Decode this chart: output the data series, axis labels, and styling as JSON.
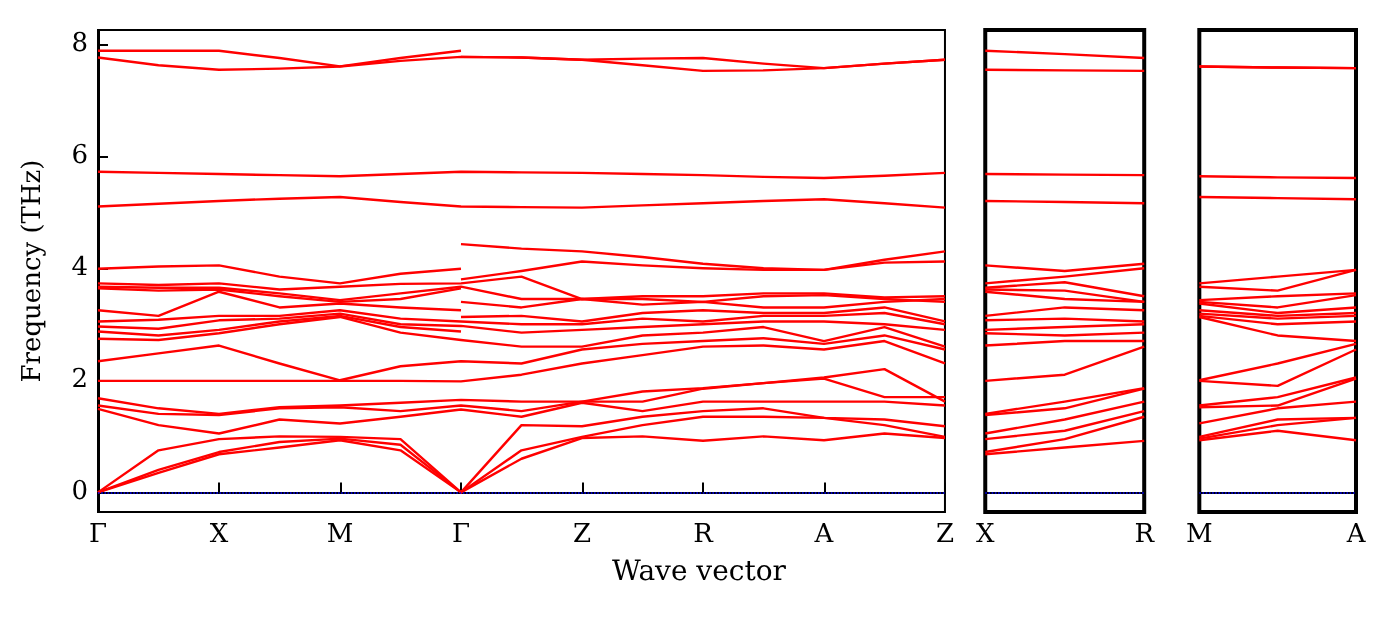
{
  "chart_data": [
    {
      "type": "line",
      "ylabel": "Frequency (THz)",
      "xlabel": "Wave vector",
      "ylim": [
        -0.35,
        8.25
      ],
      "yticks": [
        0,
        2,
        4,
        6,
        8
      ],
      "categories": [
        "Γ",
        null,
        "X",
        null,
        "M",
        null,
        "Γ",
        null,
        "Z",
        null,
        "R",
        null,
        "A",
        null,
        "Z"
      ],
      "grid": false,
      "ref_lines": [
        {
          "axis": "y",
          "value": 0,
          "color": "#0000ff",
          "line_style": "dotted"
        }
      ],
      "series": [
        {
          "color": "#ff0000",
          "values": [
            0,
            0.35,
            0.68,
            0.8,
            0.93,
            0.75,
            0,
            0.6,
            0.97,
            1.0,
            0.92,
            1.0,
            0.93,
            1.05,
            0.97
          ]
        },
        {
          "color": "#ff0000",
          "values": [
            0,
            0.4,
            0.72,
            0.9,
            0.96,
            0.85,
            0,
            0.75,
            0.99,
            1.2,
            1.35,
            1.35,
            1.33,
            1.2,
            0.99
          ]
        },
        {
          "color": "#ff0000",
          "values": [
            0,
            0.75,
            0.95,
            1.0,
            0.99,
            0.95,
            0,
            1.2,
            1.18,
            1.35,
            1.45,
            1.5,
            1.33,
            1.3,
            1.18
          ]
        },
        {
          "color": "#ff0000",
          "values": [
            1.49,
            1.2,
            1.05,
            1.3,
            1.23,
            1.35,
            1.48,
            1.35,
            1.6,
            1.45,
            1.62,
            1.62,
            1.62,
            1.62,
            1.55
          ]
        },
        {
          "color": "#ff0000",
          "values": [
            1.55,
            1.4,
            1.38,
            1.5,
            1.52,
            1.45,
            1.55,
            1.45,
            1.62,
            1.62,
            1.85,
            1.95,
            2.03,
            1.7,
            1.7
          ]
        },
        {
          "color": "#ff0000",
          "values": [
            1.68,
            1.5,
            1.4,
            1.52,
            1.55,
            1.6,
            1.65,
            1.62,
            1.62,
            1.8,
            1.86,
            1.95,
            2.05,
            2.2,
            1.62
          ]
        },
        {
          "color": "#ff0000",
          "values": [
            1.99,
            1.99,
            1.99,
            1.99,
            1.99,
            1.99,
            1.98,
            2.1,
            2.3,
            2.45,
            2.6,
            2.62,
            2.55,
            2.7,
            2.3
          ]
        },
        {
          "color": "#ff0000",
          "values": [
            2.34,
            2.48,
            2.62,
            2.3,
            2.0,
            2.25,
            2.34,
            2.3,
            2.55,
            2.65,
            2.7,
            2.75,
            2.65,
            2.8,
            2.55
          ]
        },
        {
          "color": "#ff0000",
          "values": [
            2.74,
            2.72,
            2.84,
            3.0,
            3.13,
            2.85,
            2.72,
            2.6,
            2.6,
            2.8,
            2.85,
            2.95,
            2.7,
            2.95,
            2.6
          ]
        },
        {
          "color": "#ff0000",
          "values": [
            2.87,
            2.8,
            2.9,
            3.05,
            3.15,
            2.95,
            2.87,
            null,
            null,
            null,
            null,
            null,
            null,
            null,
            null
          ]
        },
        {
          "color": "#ff0000",
          "values": [
            2.96,
            2.92,
            3.07,
            3.1,
            3.19,
            3.0,
            2.97,
            2.85,
            2.9,
            2.95,
            3.0,
            3.05,
            3.05,
            3.0,
            2.9
          ]
        },
        {
          "color": "#ff0000",
          "values": [
            3.05,
            3.08,
            3.15,
            3.15,
            3.25,
            3.1,
            3.05,
            3.0,
            3.0,
            3.1,
            3.05,
            3.15,
            3.15,
            3.2,
            3.0
          ]
        },
        {
          "color": "#ff0000",
          "values": [
            null,
            null,
            null,
            null,
            null,
            null,
            3.13,
            3.15,
            3.05,
            3.2,
            3.25,
            3.2,
            3.2,
            3.3,
            3.05
          ]
        },
        {
          "color": "#ff0000",
          "values": [
            3.25,
            3.15,
            3.58,
            3.3,
            3.37,
            3.3,
            3.25,
            null,
            null,
            null,
            null,
            null,
            null,
            null,
            null
          ]
        },
        {
          "color": "#ff0000",
          "values": [
            null,
            null,
            null,
            null,
            null,
            null,
            3.4,
            3.3,
            3.45,
            3.35,
            3.4,
            3.3,
            3.3,
            3.4,
            3.45
          ]
        },
        {
          "color": "#ff0000",
          "values": [
            3.64,
            3.6,
            3.62,
            3.5,
            3.4,
            3.45,
            3.64,
            null,
            null,
            null,
            null,
            null,
            null,
            null,
            null
          ]
        },
        {
          "color": "#ff0000",
          "values": [
            3.67,
            3.65,
            3.65,
            3.55,
            3.43,
            3.55,
            3.67,
            3.45,
            3.45,
            3.45,
            3.4,
            3.5,
            3.52,
            3.45,
            3.4
          ]
        },
        {
          "color": "#ff0000",
          "values": [
            3.73,
            3.7,
            3.73,
            3.62,
            3.67,
            3.72,
            3.73,
            3.85,
            3.45,
            3.5,
            3.5,
            3.55,
            3.55,
            3.48,
            3.5
          ]
        },
        {
          "color": "#ff0000",
          "values": [
            null,
            null,
            null,
            null,
            null,
            null,
            3.8,
            3.95,
            4.12,
            4.05,
            4.0,
            3.97,
            3.97,
            4.1,
            4.12
          ]
        },
        {
          "color": "#ff0000",
          "values": [
            3.99,
            4.03,
            4.05,
            3.85,
            3.73,
            3.9,
            3.99,
            null,
            null,
            null,
            null,
            null,
            null,
            null,
            null
          ]
        },
        {
          "color": "#ff0000",
          "values": [
            null,
            null,
            null,
            null,
            null,
            null,
            4.43,
            4.35,
            4.3,
            4.2,
            4.08,
            4.0,
            3.97,
            4.15,
            4.3
          ]
        },
        {
          "color": "#ff0000",
          "values": [
            5.1,
            5.15,
            5.2,
            5.24,
            5.27,
            5.18,
            5.1,
            5.09,
            5.08,
            5.12,
            5.16,
            5.2,
            5.23,
            5.16,
            5.08
          ]
        },
        {
          "color": "#ff0000",
          "values": [
            5.72,
            5.7,
            5.68,
            5.66,
            5.64,
            5.68,
            5.72,
            5.71,
            5.7,
            5.68,
            5.66,
            5.63,
            5.61,
            5.65,
            5.7
          ]
        },
        {
          "color": "#ff0000",
          "values": [
            7.76,
            7.62,
            7.54,
            7.56,
            7.6,
            7.7,
            7.77,
            7.76,
            7.72,
            7.62,
            7.52,
            7.53,
            7.57,
            7.65,
            7.72
          ]
        },
        {
          "color": "#ff0000",
          "values": [
            7.88,
            7.88,
            7.88,
            7.75,
            7.6,
            7.75,
            7.88,
            null,
            null,
            null,
            null,
            null,
            null,
            null,
            null
          ]
        },
        {
          "color": "#ff0000",
          "values": [
            null,
            null,
            null,
            null,
            null,
            null,
            7.77,
            7.76,
            7.72,
            7.74,
            7.75,
            7.65,
            7.57,
            7.65,
            7.72
          ]
        }
      ]
    },
    {
      "type": "line",
      "ylim": [
        -0.35,
        8.25
      ],
      "tick_labels": "x",
      "grid": false,
      "categories": [
        "X",
        null,
        "R"
      ],
      "ref_lines": [
        {
          "axis": "y",
          "value": 0,
          "color": "#0000ff",
          "line_style": "dotted"
        }
      ],
      "series": [
        {
          "color": "#ff0000",
          "values": [
            0.68,
            0.8,
            0.92
          ]
        },
        {
          "color": "#ff0000",
          "values": [
            0.72,
            0.95,
            1.35
          ]
        },
        {
          "color": "#ff0000",
          "values": [
            0.95,
            1.1,
            1.45
          ]
        },
        {
          "color": "#ff0000",
          "values": [
            1.05,
            1.3,
            1.62
          ]
        },
        {
          "color": "#ff0000",
          "values": [
            1.38,
            1.5,
            1.85
          ]
        },
        {
          "color": "#ff0000",
          "values": [
            1.4,
            1.62,
            1.86
          ]
        },
        {
          "color": "#ff0000",
          "values": [
            1.99,
            2.1,
            2.6
          ]
        },
        {
          "color": "#ff0000",
          "values": [
            2.62,
            2.7,
            2.7
          ]
        },
        {
          "color": "#ff0000",
          "values": [
            2.84,
            2.8,
            2.85
          ]
        },
        {
          "color": "#ff0000",
          "values": [
            2.9,
            2.95,
            3.0
          ]
        },
        {
          "color": "#ff0000",
          "values": [
            3.07,
            3.1,
            3.05
          ]
        },
        {
          "color": "#ff0000",
          "values": [
            3.15,
            3.3,
            3.25
          ]
        },
        {
          "color": "#ff0000",
          "values": [
            3.58,
            3.45,
            3.4
          ]
        },
        {
          "color": "#ff0000",
          "values": [
            3.62,
            3.6,
            3.4
          ]
        },
        {
          "color": "#ff0000",
          "values": [
            3.65,
            3.75,
            3.5
          ]
        },
        {
          "color": "#ff0000",
          "values": [
            3.73,
            3.85,
            4.0
          ]
        },
        {
          "color": "#ff0000",
          "values": [
            4.05,
            3.95,
            4.08
          ]
        },
        {
          "color": "#ff0000",
          "values": [
            5.2,
            5.18,
            5.16
          ]
        },
        {
          "color": "#ff0000",
          "values": [
            5.68,
            5.67,
            5.66
          ]
        },
        {
          "color": "#ff0000",
          "values": [
            7.54,
            7.53,
            7.52
          ]
        },
        {
          "color": "#ff0000",
          "values": [
            7.88,
            7.82,
            7.75
          ]
        }
      ]
    },
    {
      "type": "line",
      "ylim": [
        -0.35,
        8.25
      ],
      "tick_labels": "x",
      "grid": false,
      "categories": [
        "M",
        null,
        "A"
      ],
      "ref_lines": [
        {
          "axis": "y",
          "value": 0,
          "color": "#0000ff",
          "line_style": "dotted"
        }
      ],
      "series": [
        {
          "color": "#ff0000",
          "values": [
            0.93,
            1.1,
            0.93
          ]
        },
        {
          "color": "#ff0000",
          "values": [
            0.96,
            1.2,
            1.33
          ]
        },
        {
          "color": "#ff0000",
          "values": [
            0.99,
            1.3,
            1.33
          ]
        },
        {
          "color": "#ff0000",
          "values": [
            1.23,
            1.5,
            1.62
          ]
        },
        {
          "color": "#ff0000",
          "values": [
            1.52,
            1.55,
            2.03
          ]
        },
        {
          "color": "#ff0000",
          "values": [
            1.55,
            1.7,
            2.05
          ]
        },
        {
          "color": "#ff0000",
          "values": [
            1.99,
            1.9,
            2.55
          ]
        },
        {
          "color": "#ff0000",
          "values": [
            2.0,
            2.3,
            2.65
          ]
        },
        {
          "color": "#ff0000",
          "values": [
            3.13,
            2.8,
            2.7
          ]
        },
        {
          "color": "#ff0000",
          "values": [
            3.15,
            3.0,
            3.05
          ]
        },
        {
          "color": "#ff0000",
          "values": [
            3.19,
            3.1,
            3.15
          ]
        },
        {
          "color": "#ff0000",
          "values": [
            3.25,
            3.15,
            3.2
          ]
        },
        {
          "color": "#ff0000",
          "values": [
            3.37,
            3.2,
            3.3
          ]
        },
        {
          "color": "#ff0000",
          "values": [
            3.4,
            3.3,
            3.52
          ]
        },
        {
          "color": "#ff0000",
          "values": [
            3.43,
            3.5,
            3.55
          ]
        },
        {
          "color": "#ff0000",
          "values": [
            3.67,
            3.6,
            3.97
          ]
        },
        {
          "color": "#ff0000",
          "values": [
            3.73,
            3.85,
            3.97
          ]
        },
        {
          "color": "#ff0000",
          "values": [
            5.27,
            5.25,
            5.23
          ]
        },
        {
          "color": "#ff0000",
          "values": [
            5.64,
            5.62,
            5.61
          ]
        },
        {
          "color": "#ff0000",
          "values": [
            7.6,
            7.58,
            7.57
          ]
        },
        {
          "color": "#ff0000",
          "values": [
            7.6,
            7.58,
            7.57
          ]
        }
      ]
    }
  ]
}
